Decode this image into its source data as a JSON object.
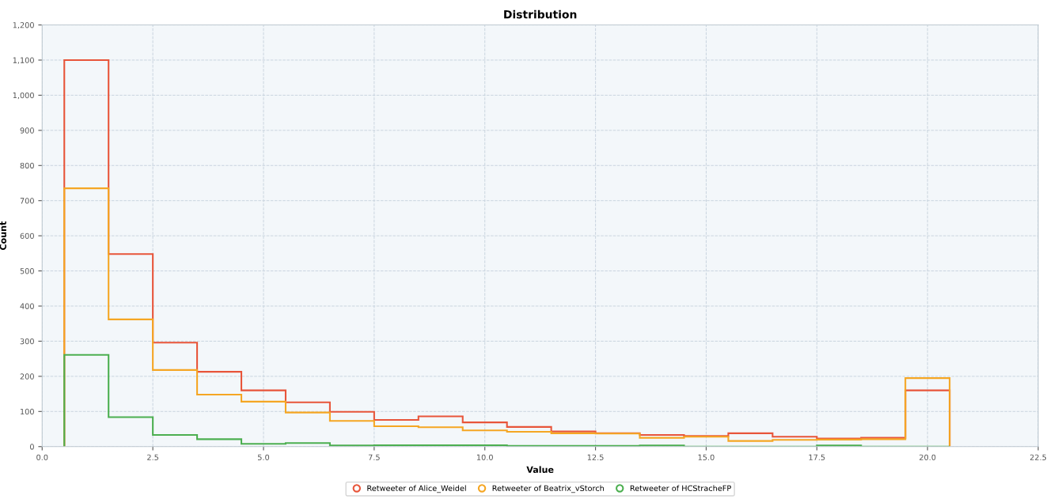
{
  "chart_data": {
    "type": "histogram",
    "title": "Distribution",
    "xlabel": "Value",
    "ylabel": "Count",
    "bins": [
      0.5,
      1.5,
      2.5,
      3.5,
      4.5,
      5.5,
      6.5,
      7.5,
      8.5,
      9.5,
      10.5,
      11.5,
      12.5,
      13.5,
      14.5,
      15.5,
      16.5,
      17.5,
      18.5,
      19.5,
      20.5
    ],
    "series": [
      {
        "name": "Retweeter of Alice_Weidel",
        "color": "#e8553a",
        "values": [
          1100,
          548,
          296,
          213,
          160,
          126,
          99,
          76,
          86,
          69,
          56,
          43,
          38,
          33,
          30,
          38,
          28,
          23,
          25,
          160
        ]
      },
      {
        "name": "Retweeter of Beatrix_vStorch",
        "color": "#f5a623",
        "values": [
          735,
          362,
          218,
          148,
          128,
          97,
          73,
          58,
          55,
          46,
          42,
          38,
          37,
          25,
          28,
          16,
          19,
          20,
          21,
          195
        ]
      },
      {
        "name": "Retweeter of HCStracheFP",
        "color": "#4caf50",
        "values": [
          261,
          84,
          33,
          21,
          8,
          10,
          3,
          4,
          4,
          4,
          2,
          2,
          2,
          3,
          0,
          0,
          0,
          3,
          0,
          0
        ]
      }
    ],
    "xlim": [
      0,
      22.5
    ],
    "xticks": [
      {
        "value": 0,
        "label": "0.0"
      },
      {
        "value": 2.5,
        "label": "2.5"
      },
      {
        "value": 5,
        "label": "5.0"
      },
      {
        "value": 7.5,
        "label": "7.5"
      },
      {
        "value": 10,
        "label": "10.0"
      },
      {
        "value": 12.5,
        "label": "12.5"
      },
      {
        "value": 15,
        "label": "15.0"
      },
      {
        "value": 17.5,
        "label": "17.5"
      },
      {
        "value": 20,
        "label": "20.0"
      },
      {
        "value": 22.5,
        "label": "22.5"
      }
    ],
    "ylim": [
      0,
      1200
    ],
    "yticks": [
      0,
      100,
      200,
      300,
      400,
      500,
      600,
      700,
      800,
      900,
      {
        "value": 1000,
        "label": "1,000"
      },
      {
        "value": 1100,
        "label": "1,100"
      },
      {
        "value": 1200,
        "label": "1,200"
      }
    ],
    "grid": true,
    "legend": "bottom",
    "marker": "circle"
  }
}
